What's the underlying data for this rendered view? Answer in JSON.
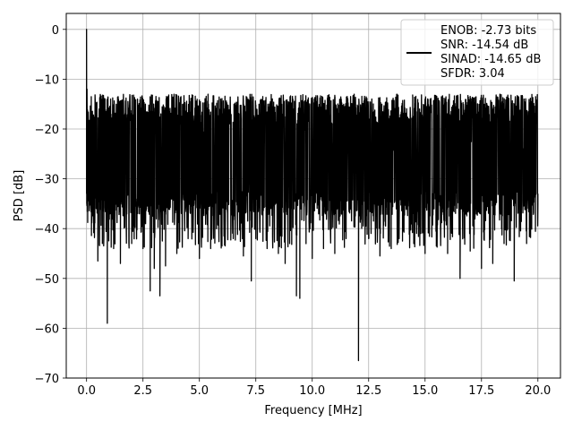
{
  "chart_data": {
    "type": "line",
    "title": "",
    "xlabel": "Frequency [MHz]",
    "ylabel": "PSD [dB]",
    "xlim": [
      -0.9,
      21.0
    ],
    "ylim": [
      -70,
      3.2
    ],
    "xticks": [
      0.0,
      2.5,
      5.0,
      7.5,
      10.0,
      12.5,
      15.0,
      17.5,
      20.0
    ],
    "xtick_labels": [
      "0.0",
      "2.5",
      "5.0",
      "7.5",
      "10.0",
      "12.5",
      "15.0",
      "17.5",
      "20.0"
    ],
    "yticks": [
      0,
      -10,
      -20,
      -30,
      -40,
      -50,
      -60,
      -70
    ],
    "ytick_labels": [
      "0",
      "−10",
      "−20",
      "−30",
      "−40",
      "−50",
      "−60",
      "−70"
    ],
    "grid": true,
    "legend_position": "top-right",
    "series": [
      {
        "name": "ENOB: -2.73 bits\nSNR: -14.54 dB\nSINAD: -14.65 dB\nSFDR: 3.04",
        "legend_lines": [
          "ENOB: -2.73 bits",
          "SNR: -14.54 dB",
          "SINAD: -14.65 dB",
          "SFDR: 3.04"
        ],
        "color": "#000000",
        "noise_floor_band_db": [
          -35,
          -16
        ],
        "x": [
          0.0,
          0.02,
          0.05,
          0.1,
          0.2,
          0.35,
          0.5,
          0.7,
          0.92,
          1.2,
          1.5,
          2.0,
          2.5,
          2.82,
          3.0,
          3.25,
          3.5,
          3.5,
          4.0,
          4.5,
          5.0,
          5.5,
          6.0,
          6.5,
          6.95,
          7.3,
          7.5,
          8.0,
          8.5,
          8.8,
          9.0,
          9.3,
          9.45,
          10.0,
          10.5,
          10.85,
          11.0,
          11.5,
          12.05,
          12.5,
          13.0,
          13.5,
          14.0,
          14.5,
          15.0,
          15.5,
          16.0,
          16.55,
          17.0,
          17.5,
          18.0,
          18.5,
          18.95,
          19.5,
          20.0
        ],
        "y": [
          0.0,
          -12.0,
          -28.0,
          -22.0,
          -30.0,
          -33.0,
          -46.5,
          -43.0,
          -59.0,
          -44.0,
          -47.0,
          -43.0,
          -44.0,
          -52.5,
          -48.0,
          -53.5,
          -47.0,
          -47.5,
          -45.0,
          -42.0,
          -46.0,
          -44.0,
          -43.5,
          -42.0,
          -45.5,
          -50.5,
          -42.0,
          -44.0,
          -45.0,
          -47.0,
          -43.0,
          -53.5,
          -54.0,
          -46.0,
          -44.0,
          -40.0,
          -45.0,
          -42.0,
          -66.5,
          -42.0,
          -45.5,
          -44.0,
          -42.5,
          -43.0,
          -45.0,
          -43.5,
          -45.0,
          -50.0,
          -44.5,
          -48.0,
          -47.0,
          -43.0,
          -50.5,
          -43.0,
          -33.0
        ]
      }
    ]
  }
}
